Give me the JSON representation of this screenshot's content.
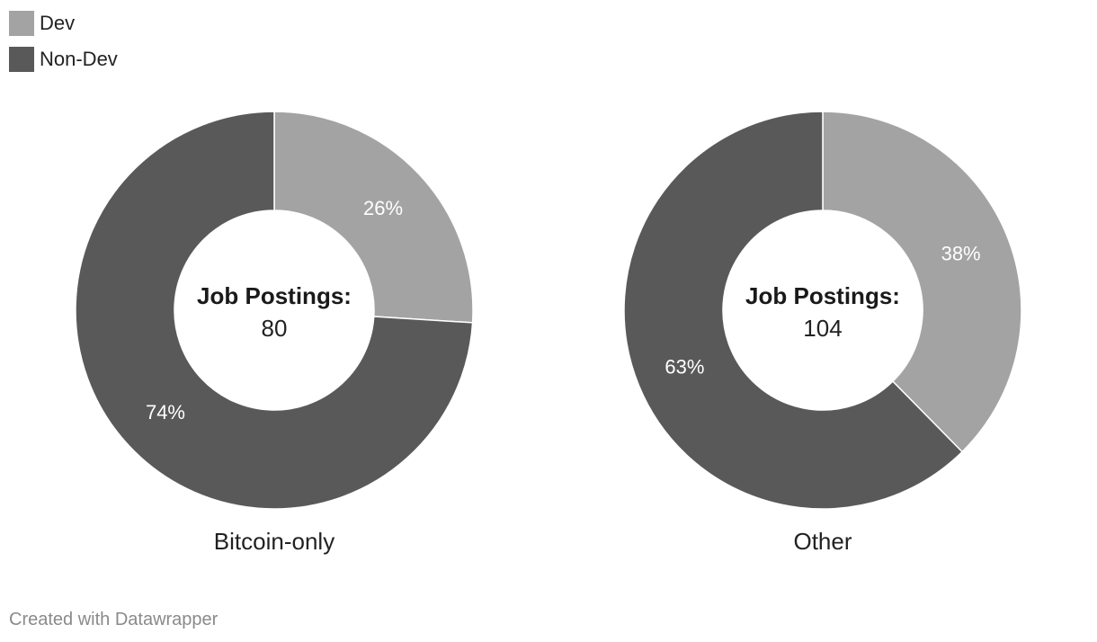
{
  "legend": {
    "items": [
      {
        "label": "Dev",
        "color": "#a3a3a3"
      },
      {
        "label": "Non-Dev",
        "color": "#595959"
      }
    ]
  },
  "footer": {
    "text": "Created with Datawrapper"
  },
  "chart_data": [
    {
      "type": "pie",
      "title": "Bitcoin-only",
      "center_title": "Job Postings:",
      "center_value": "80",
      "categories": [
        "Dev",
        "Non-Dev"
      ],
      "values": [
        26,
        74
      ],
      "labels": [
        "26%",
        "74%"
      ],
      "colors": [
        "#a3a3a3",
        "#595959"
      ],
      "donut": true
    },
    {
      "type": "pie",
      "title": "Other",
      "center_title": "Job Postings:",
      "center_value": "104",
      "categories": [
        "Dev",
        "Non-Dev"
      ],
      "values": [
        38,
        63
      ],
      "labels": [
        "38%",
        "63%"
      ],
      "colors": [
        "#a3a3a3",
        "#595959"
      ],
      "donut": true
    }
  ]
}
